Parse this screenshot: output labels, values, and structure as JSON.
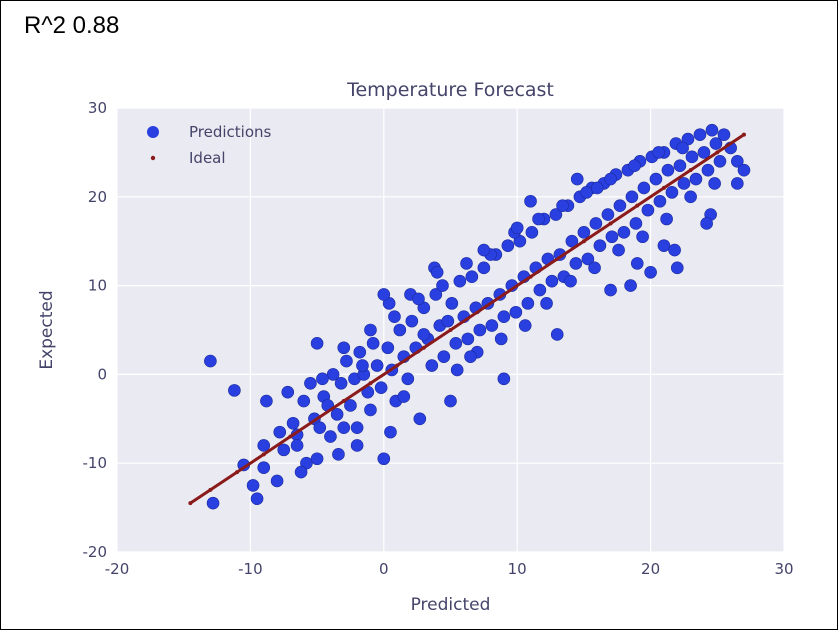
{
  "annotation": {
    "r2_text": "R^2 0.88"
  },
  "chart_data": {
    "type": "scatter",
    "title": "Temperature Forecast",
    "xlabel": "Predicted",
    "ylabel": "Expected",
    "xlim": [
      -20,
      30
    ],
    "ylim": [
      -20,
      30
    ],
    "xticks": [
      "-20",
      "-10",
      "0",
      "10",
      "20",
      "30"
    ],
    "yticks": [
      "-20",
      "-10",
      "0",
      "10",
      "20",
      "30"
    ],
    "grid": true,
    "legend_position": "top-left",
    "colors": {
      "predictions": "#2a3fe0",
      "ideal": "#8b1a1a",
      "plot_bg": "#eaeaf2",
      "grid": "#ffffff"
    },
    "series": [
      {
        "name": "Predictions",
        "marker": "circle",
        "x": [
          -13.0,
          -10.5,
          -9.8,
          -9.5,
          -11.2,
          -8.8,
          -8.0,
          -7.5,
          -7.2,
          -6.8,
          -6.5,
          -6.0,
          -5.8,
          -5.5,
          -5.2,
          -5.0,
          -4.8,
          -4.5,
          -4.2,
          -4.0,
          -3.8,
          -3.5,
          -3.2,
          -3.0,
          -2.8,
          -2.5,
          -2.2,
          -2.0,
          -1.8,
          -1.5,
          -1.2,
          -1.0,
          -0.8,
          -0.5,
          -0.2,
          0.0,
          0.3,
          0.6,
          0.9,
          1.2,
          1.5,
          1.8,
          2.1,
          2.4,
          2.7,
          3.0,
          3.3,
          3.6,
          3.9,
          4.2,
          4.5,
          4.8,
          5.1,
          5.4,
          5.7,
          6.0,
          6.3,
          6.6,
          6.9,
          7.2,
          7.5,
          7.8,
          8.1,
          8.4,
          8.7,
          9.0,
          9.3,
          9.6,
          9.9,
          10.2,
          10.5,
          10.8,
          11.1,
          11.4,
          11.7,
          12.0,
          12.3,
          12.6,
          12.9,
          13.2,
          13.5,
          13.8,
          14.1,
          14.4,
          14.7,
          15.0,
          15.3,
          15.6,
          15.9,
          16.2,
          16.5,
          16.8,
          17.1,
          17.4,
          17.7,
          18.0,
          18.3,
          18.6,
          18.9,
          19.2,
          19.5,
          19.8,
          20.1,
          20.4,
          20.7,
          21.0,
          21.3,
          21.6,
          21.9,
          22.2,
          22.5,
          22.8,
          23.1,
          23.4,
          23.7,
          24.0,
          24.3,
          24.6,
          24.9,
          25.2,
          25.5,
          26.0,
          26.5,
          27.0,
          -12.8,
          -9.0,
          -7.8,
          -6.2,
          -4.6,
          -3.4,
          -1.6,
          0.4,
          2.0,
          3.8,
          5.5,
          7.0,
          8.8,
          10.6,
          12.2,
          14.0,
          15.8,
          17.6,
          19.4,
          21.2,
          23.0,
          24.8,
          -1.0,
          0.8,
          2.6,
          4.4,
          6.2,
          8.0,
          9.8,
          11.6,
          13.4,
          15.2,
          17.0,
          18.8,
          20.6,
          22.4,
          -3.0,
          1.5,
          5.0,
          9.0,
          13.0,
          17.0,
          21.0,
          24.5,
          16.0,
          18.5,
          20.0,
          22.0,
          11.0,
          7.5,
          4.0,
          0.0,
          -5.0,
          26.5,
          24.2,
          21.8,
          19.0,
          14.5,
          10.0,
          6.5,
          3.0,
          -2.0,
          -6.5,
          0.5,
          -9.0
        ],
        "y": [
          1.5,
          -10.2,
          -12.5,
          -14.0,
          -1.8,
          -3.0,
          -12.0,
          -8.5,
          -2.0,
          -5.5,
          -6.8,
          -3.0,
          -10.0,
          -1.0,
          -5.0,
          -9.5,
          -6.0,
          -2.5,
          -3.5,
          -7.0,
          0.0,
          -4.5,
          -1.0,
          -6.0,
          1.5,
          -3.5,
          -0.5,
          -8.0,
          2.5,
          0.0,
          -2.0,
          -4.0,
          3.5,
          1.0,
          -1.5,
          -9.5,
          3.0,
          0.5,
          -3.0,
          5.0,
          2.0,
          -0.5,
          6.0,
          3.0,
          -5.0,
          7.5,
          4.0,
          1.0,
          9.0,
          5.5,
          2.0,
          6.0,
          8.0,
          3.5,
          10.5,
          6.5,
          4.0,
          11.0,
          7.5,
          5.0,
          12.0,
          8.0,
          5.5,
          13.5,
          9.0,
          6.5,
          14.5,
          10.0,
          7.0,
          15.0,
          11.0,
          8.0,
          16.0,
          12.0,
          9.5,
          17.5,
          13.0,
          10.5,
          18.0,
          13.5,
          11.0,
          19.0,
          15.0,
          12.5,
          20.0,
          16.0,
          13.0,
          21.0,
          17.0,
          14.5,
          21.5,
          18.0,
          15.5,
          22.5,
          19.0,
          16.0,
          23.0,
          20.0,
          17.0,
          24.0,
          21.0,
          18.5,
          24.5,
          22.0,
          19.5,
          25.0,
          23.0,
          20.5,
          26.0,
          23.5,
          21.5,
          26.5,
          24.5,
          22.0,
          27.0,
          25.0,
          23.0,
          27.5,
          26.0,
          24.0,
          27.0,
          25.5,
          24.0,
          23.0,
          -14.5,
          -8.0,
          -6.5,
          -11.0,
          -0.5,
          -9.0,
          1.0,
          8.0,
          9.0,
          12.0,
          0.5,
          2.5,
          4.0,
          5.5,
          8.0,
          10.5,
          12.0,
          14.0,
          15.5,
          17.5,
          20.0,
          21.5,
          5.0,
          6.5,
          8.5,
          10.0,
          12.5,
          13.5,
          16.0,
          17.5,
          19.0,
          20.5,
          22.0,
          23.5,
          25.0,
          25.5,
          3.0,
          -2.5,
          -3.0,
          -0.5,
          4.5,
          9.5,
          14.5,
          18.0,
          21.0,
          10.0,
          11.5,
          12.0,
          19.5,
          14.0,
          11.5,
          9.0,
          3.5,
          21.5,
          17.0,
          14.0,
          12.5,
          22.0,
          16.5,
          2.0,
          4.5,
          -6.0,
          -8.0,
          -6.5,
          -10.5
        ]
      },
      {
        "name": "Ideal",
        "marker": "dot",
        "x": [
          -14.5,
          -13.0,
          -11.0,
          -9.0,
          -7.0,
          -5.0,
          -3.0,
          -1.0,
          1.0,
          3.0,
          5.0,
          7.0,
          9.0,
          11.0,
          13.0,
          15.0,
          17.0,
          19.0,
          21.0,
          23.0,
          25.0,
          27.0
        ],
        "y": [
          -14.5,
          -13.0,
          -11.0,
          -9.0,
          -7.0,
          -5.0,
          -3.0,
          -1.0,
          1.0,
          3.0,
          5.0,
          7.0,
          9.0,
          11.0,
          13.0,
          15.0,
          17.0,
          19.0,
          21.0,
          23.0,
          25.0,
          27.0
        ]
      }
    ]
  }
}
